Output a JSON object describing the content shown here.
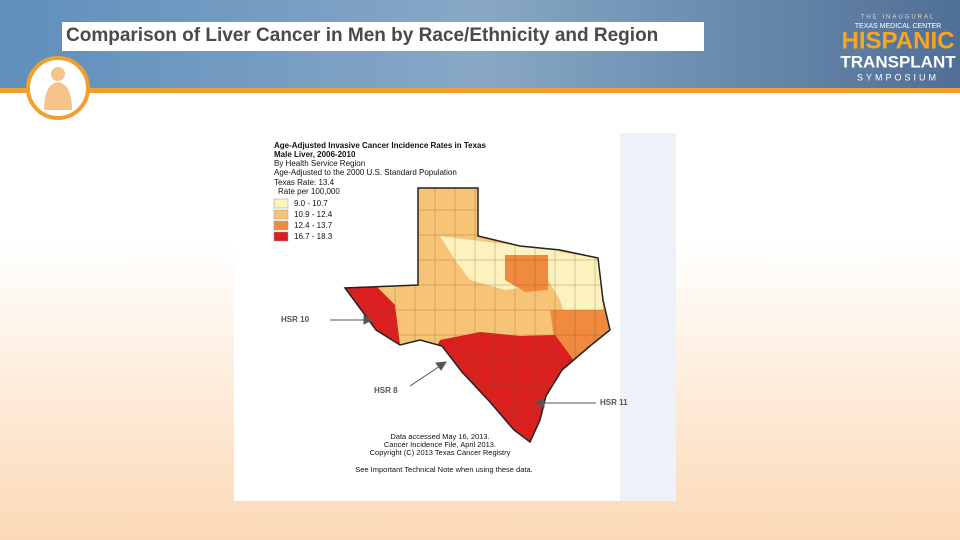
{
  "header": {
    "title": "Comparison of Liver Cancer in Men by Race/Ethnicity and Region"
  },
  "logo": {
    "line1": "THE INAUGURAL",
    "line2": "TEXAS MEDICAL CENTER",
    "line3": "HISPANIC",
    "line4": "TRANSPLANT",
    "line5": "SYMPOSIUM"
  },
  "map": {
    "title_lines": [
      "Age-Adjusted Invasive Cancer Incidence Rates in Texas",
      "Male Liver, 2006-2010",
      "By Health Service Region",
      "Age-Adjusted to the 2000 U.S. Standard Population"
    ],
    "texas_rate": "Texas Rate: 13.4",
    "rate_unit": "Rate per 100,000",
    "legend": [
      {
        "label": "9.0 - 10.7",
        "color": "#fdf2be"
      },
      {
        "label": "10.9 - 12.4",
        "color": "#f7c477"
      },
      {
        "label": "12.4 - 13.7",
        "color": "#ef8a3e"
      },
      {
        "label": "16.7 - 18.3",
        "color": "#d9201e"
      }
    ],
    "annotations": [
      "HSR 10",
      "HSR 8",
      "HSR 11"
    ],
    "footer_lines": [
      "Data accessed May 16, 2013.",
      "Cancer Incidence File, April 2013.",
      "Copyright (C) 2013 Texas Cancer Registry",
      "See Important Technical Note when using these data."
    ]
  }
}
